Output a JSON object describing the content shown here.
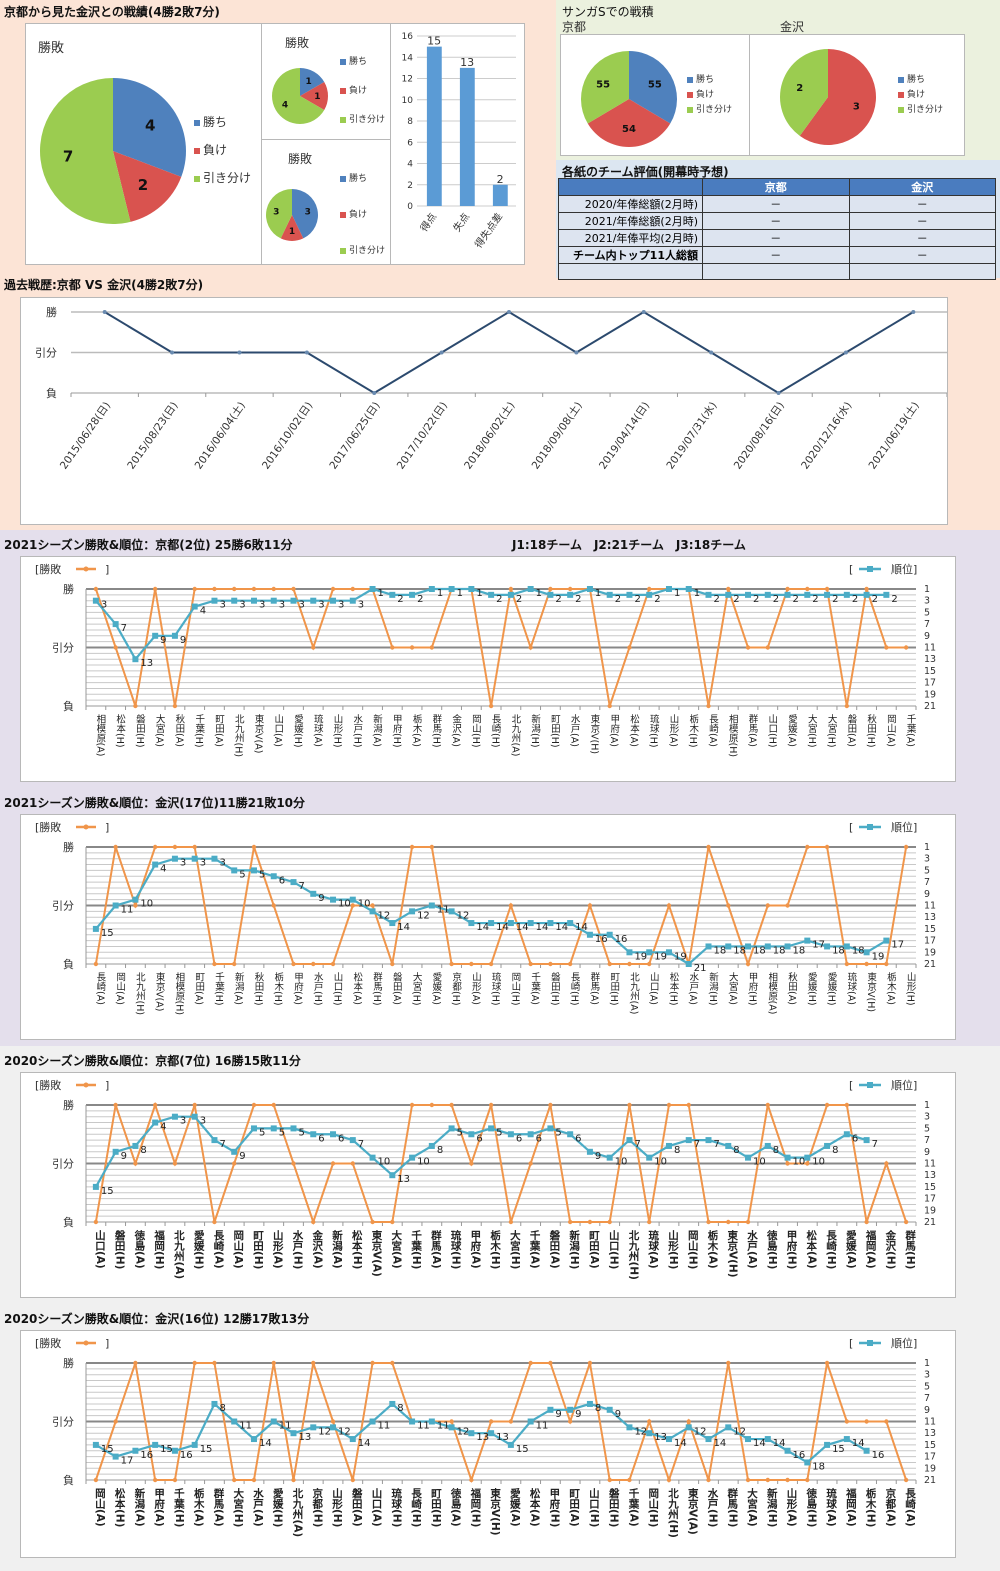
{
  "colors": {
    "win": "#4f81bd",
    "loss": "#d9534f",
    "draw": "#9bcc50",
    "line_result": "#f0954a",
    "line_rank": "#4bacc6",
    "h2h_line": "#2c4a6e",
    "bar": "#5b9bd5"
  },
  "h2h": {
    "title": "京都から見た金沢との戦績(4勝2敗7分)",
    "pie_title": "勝敗",
    "legend": [
      "勝ち",
      "負け",
      "引き分け"
    ],
    "small_pie_title_1": "勝敗",
    "small_pie_title_2": "勝敗",
    "bar_categories": [
      "得点",
      "失点",
      "得失点差"
    ]
  },
  "sanga": {
    "title": "サンガSでの戦積",
    "kyoto_label": "京都",
    "kanazawa_label": "金沢",
    "legend": [
      "勝ち",
      "負け",
      "引き分け"
    ]
  },
  "eval": {
    "title": "各紙のチーム評価(開幕時予想)",
    "headers": [
      "",
      "京都",
      "金沢"
    ],
    "rows": [
      [
        "2020/年俸総額(2月時)",
        "－",
        "－"
      ],
      [
        "2021/年俸総額(2月時)",
        "－",
        "－"
      ],
      [
        "2021/年俸平均(2月時)",
        "－",
        "－"
      ],
      [
        "チーム内トップ11人総額",
        "－",
        "－"
      ],
      [
        "",
        "",
        ""
      ]
    ]
  },
  "history": {
    "title": "過去戦歴:京都 VS 金沢(4勝2敗7分)"
  },
  "season_titles": {
    "k2021": "2021シーズン勝敗&順位：京都(2位) 25勝6敗11分",
    "league_info": "J1:18チーム　J2:21チーム　J3:18チーム",
    "z2021": "2021シーズン勝敗&順位：金沢(17位)11勝21敗10分",
    "k2020": "2020シーズン勝敗&順位：京都(7位) 16勝15敗11分",
    "z2020": "2020シーズン勝敗&順位：金沢(16位) 12勝17敗13分"
  },
  "legend_labels": {
    "result": "[勝敗",
    "result_close": "]",
    "rank_open": "[",
    "rank": "順位]"
  },
  "chart_data": [
    {
      "id": "h2h_pie",
      "type": "pie",
      "title": "勝敗",
      "labels": [
        "勝ち",
        "負け",
        "引き分け"
      ],
      "values": [
        4,
        2,
        7
      ]
    },
    {
      "id": "h2h_pie_small1",
      "type": "pie",
      "title": "勝敗",
      "labels": [
        "勝ち",
        "負け",
        "引き分け"
      ],
      "values": [
        1,
        1,
        4
      ]
    },
    {
      "id": "h2h_pie_small2",
      "type": "pie",
      "title": "勝敗",
      "labels": [
        "勝ち",
        "負け",
        "引き分け"
      ],
      "values": [
        3,
        1,
        3
      ]
    },
    {
      "id": "h2h_bar",
      "type": "bar",
      "title": "",
      "categories": [
        "得点",
        "失点",
        "得失点差"
      ],
      "values": [
        15,
        13,
        2
      ],
      "ylim": [
        0,
        16
      ],
      "yticks": [
        0,
        2,
        4,
        6,
        8,
        10,
        12,
        14,
        16
      ]
    },
    {
      "id": "sanga_kyoto",
      "type": "pie",
      "title": "京都",
      "labels": [
        "勝ち",
        "負け",
        "引き分け"
      ],
      "values": [
        55,
        54,
        55
      ]
    },
    {
      "id": "sanga_kanazawa",
      "type": "pie",
      "title": "金沢",
      "labels": [
        "勝ち",
        "負け",
        "引き分け"
      ],
      "values": [
        0,
        3,
        2
      ]
    },
    {
      "id": "history",
      "type": "line",
      "title": "過去戦歴:京都 VS 金沢(4勝2敗7分)",
      "yticks": [
        "負",
        "引分",
        "勝"
      ],
      "x": [
        "2015/06/28(日)",
        "2015/08/23(日)",
        "2016/06/04(土)",
        "2016/10/02(日)",
        "2017/06/25(日)",
        "2017/10/22(日)",
        "2018/06/02(土)",
        "2018/09/08(土)",
        "2019/04/14(日)",
        "2019/07/31(水)",
        "2020/08/16(日)",
        "2020/12/16(水)",
        "2021/06/19(土)"
      ],
      "values": [
        2,
        1,
        1,
        1,
        0,
        1,
        2,
        1,
        2,
        1,
        0,
        1,
        2
      ]
    },
    {
      "id": "k2021",
      "type": "line",
      "title": "2021シーズン勝敗&順位：京都(2位) 25勝6敗11分",
      "left_yticks": [
        "負",
        "引分",
        "勝"
      ],
      "right_yticks": [
        1,
        3,
        5,
        7,
        9,
        11,
        13,
        15,
        17,
        19,
        21
      ],
      "x": [
        "相模原(A)",
        "松本(H)",
        "磐田(H)",
        "大宮(A)",
        "秋田(A)",
        "千葉(H)",
        "町田(A)",
        "北九州(H)",
        "東京V(A)",
        "山口(A)",
        "愛媛(H)",
        "琉球(A)",
        "山形(H)",
        "水戸(H)",
        "新潟(A)",
        "甲府(H)",
        "栃木(A)",
        "群馬(H)",
        "金沢(A)",
        "岡山(H)",
        "長崎(H)",
        "北九州(A)",
        "新潟(H)",
        "町田(H)",
        "水戸(A)",
        "東京V(H)",
        "甲府(A)",
        "松本(A)",
        "琉球(H)",
        "山形(A)",
        "栃木(H)",
        "長崎(A)",
        "相模原(H)",
        "群馬(A)",
        "山口(H)",
        "愛媛(A)",
        "大宮(H)",
        "大宮(H)",
        "磐田(A)",
        "秋田(H)",
        "岡山(A)",
        "千葉(A)"
      ],
      "series": [
        {
          "name": "勝敗",
          "values": [
            2,
            1,
            0,
            2,
            0,
            2,
            2,
            2,
            2,
            2,
            2,
            1,
            2,
            2,
            2,
            1,
            1,
            1,
            2,
            2,
            0,
            2,
            1,
            2,
            2,
            2,
            0,
            1,
            2,
            2,
            2,
            0,
            2,
            1,
            1,
            2,
            2,
            2,
            0,
            2,
            1,
            1
          ]
        },
        {
          "name": "順位",
          "values": [
            3,
            7,
            13,
            9,
            9,
            4,
            3,
            3,
            3,
            3,
            3,
            3,
            3,
            3,
            1,
            2,
            2,
            1,
            1,
            1,
            2,
            2,
            1,
            2,
            2,
            1,
            2,
            2,
            2,
            1,
            1,
            2,
            2,
            2,
            2,
            2,
            2,
            2,
            2,
            2,
            2,
            null
          ]
        }
      ]
    },
    {
      "id": "z2021",
      "type": "line",
      "title": "2021シーズン勝敗&順位：金沢(17位)11勝21敗10分",
      "left_yticks": [
        "負",
        "引分",
        "勝"
      ],
      "right_yticks": [
        1,
        3,
        5,
        7,
        9,
        11,
        13,
        15,
        17,
        19,
        21
      ],
      "x": [
        "長崎(A)",
        "岡山(A)",
        "北九州(H)",
        "東京V(A)",
        "相模原(H)",
        "町田(A)",
        "千葉(H)",
        "新潟(A)",
        "秋田(H)",
        "栃木(H)",
        "甲府(A)",
        "水戸(H)",
        "山口(H)",
        "松本(A)",
        "群馬(H)",
        "磐田(A)",
        "大宮(H)",
        "愛媛(A)",
        "京都(H)",
        "山形(A)",
        "琉球(H)",
        "岡山(H)",
        "千葉(A)",
        "磐田(H)",
        "長崎(H)",
        "群馬(A)",
        "町田(H)",
        "北九州(A)",
        "山口(A)",
        "松本(H)",
        "水戸(A)",
        "新潟(H)",
        "大宮(A)",
        "甲府(H)",
        "相模原(A)",
        "秋田(A)",
        "愛媛(H)",
        "愛媛(H)",
        "琉球(A)",
        "東京V(H)",
        "栃木(A)",
        "山形(H)"
      ],
      "series": [
        {
          "name": "勝敗",
          "values": [
            0,
            2,
            1,
            2,
            2,
            2,
            0,
            0,
            2,
            1,
            0,
            0,
            0,
            1,
            1,
            0,
            2,
            2,
            0,
            0,
            0,
            1,
            0,
            0,
            0,
            1,
            0,
            0,
            0,
            1,
            0,
            2,
            1,
            0,
            1,
            1,
            2,
            2,
            0,
            0,
            0,
            2
          ]
        },
        {
          "name": "順位",
          "values": [
            15,
            11,
            10,
            4,
            3,
            3,
            3,
            5,
            5,
            6,
            7,
            9,
            10,
            10,
            12,
            14,
            12,
            11,
            12,
            14,
            14,
            14,
            14,
            14,
            14,
            16,
            16,
            19,
            19,
            19,
            21,
            18,
            18,
            18,
            18,
            18,
            17,
            18,
            18,
            19,
            17,
            null
          ]
        }
      ]
    },
    {
      "id": "k2020",
      "type": "line",
      "title": "2020シーズン勝敗&順位：京都(7位) 16勝15敗11分",
      "left_yticks": [
        "負",
        "引分",
        "勝"
      ],
      "right_yticks": [
        1,
        3,
        5,
        7,
        9,
        11,
        13,
        15,
        17,
        19,
        21
      ],
      "x": [
        "山口(A)",
        "磐田(H)",
        "徳島(A)",
        "福岡(H)",
        "北九州(A)",
        "愛媛(H)",
        "長崎(A)",
        "岡山(A)",
        "町田(H)",
        "山形(A)",
        "水戸(H)",
        "金沢(A)",
        "新潟(A)",
        "松本(H)",
        "東京V(A)",
        "大宮(A)",
        "千葉(H)",
        "群馬(A)",
        "琉球(H)",
        "甲府(A)",
        "栃木(H)",
        "大宮(H)",
        "千葉(A)",
        "磐田(A)",
        "新潟(H)",
        "町田(A)",
        "山口(H)",
        "北九州(H)",
        "琉球(A)",
        "山形(H)",
        "岡山(H)",
        "栃木(A)",
        "東京V(H)",
        "水戸(A)",
        "徳島(H)",
        "甲府(H)",
        "松本(A)",
        "長崎(H)",
        "愛媛(A)",
        "福岡(A)",
        "金沢(H)",
        "群馬(H)"
      ],
      "series": [
        {
          "name": "勝敗",
          "values": [
            0,
            2,
            1,
            2,
            1,
            2,
            0,
            1,
            2,
            2,
            1,
            0,
            1,
            1,
            0,
            0,
            2,
            2,
            2,
            1,
            2,
            0,
            1,
            2,
            0,
            0,
            0,
            2,
            0,
            2,
            2,
            0,
            0,
            0,
            2,
            1,
            1,
            2,
            2,
            0,
            1,
            0
          ]
        },
        {
          "name": "順位",
          "values": [
            15,
            9,
            8,
            4,
            3,
            3,
            7,
            9,
            5,
            5,
            5,
            6,
            6,
            7,
            10,
            13,
            10,
            8,
            5,
            6,
            5,
            6,
            6,
            5,
            6,
            9,
            10,
            7,
            10,
            8,
            7,
            7,
            8,
            10,
            8,
            10,
            10,
            8,
            6,
            7,
            null,
            null
          ]
        }
      ]
    },
    {
      "id": "z2020",
      "type": "line",
      "title": "2020シーズン勝敗&順位：金沢(16位) 12勝17敗13分",
      "left_yticks": [
        "負",
        "引分",
        "勝"
      ],
      "right_yticks": [
        1,
        3,
        5,
        7,
        9,
        11,
        13,
        15,
        17,
        19,
        21
      ],
      "x": [
        "岡山(A)",
        "松本(H)",
        "新潟(A)",
        "甲府(A)",
        "千葉(H)",
        "栃木(A)",
        "群馬(A)",
        "大宮(H)",
        "水戸(A)",
        "愛媛(H)",
        "北九州(A)",
        "京都(H)",
        "山形(H)",
        "磐田(A)",
        "山口(A)",
        "琉球(H)",
        "長崎(H)",
        "町田(H)",
        "徳島(A)",
        "福岡(H)",
        "東京V(H)",
        "愛媛(A)",
        "松本(A)",
        "甲府(H)",
        "町田(A)",
        "山口(H)",
        "磐田(H)",
        "千葉(A)",
        "岡山(H)",
        "北九州(H)",
        "東京V(A)",
        "水戸(H)",
        "群馬(H)",
        "大宮(A)",
        "新潟(H)",
        "山形(A)",
        "徳島(H)",
        "琉球(A)",
        "福岡(A)",
        "栃木(H)",
        "京都(A)",
        "長崎(A)"
      ],
      "series": [
        {
          "name": "勝敗",
          "values": [
            0,
            1,
            2,
            0,
            0,
            2,
            2,
            0,
            0,
            2,
            0,
            2,
            1,
            0,
            2,
            2,
            1,
            1,
            1,
            0,
            1,
            1,
            2,
            2,
            1,
            2,
            0,
            0,
            1,
            0,
            1,
            0,
            2,
            0,
            0,
            0,
            0,
            2,
            1,
            1,
            1,
            0
          ]
        },
        {
          "name": "順位",
          "values": [
            15,
            17,
            16,
            15,
            16,
            15,
            8,
            11,
            14,
            11,
            13,
            12,
            12,
            14,
            11,
            8,
            11,
            11,
            12,
            13,
            13,
            15,
            11,
            9,
            9,
            8,
            9,
            12,
            13,
            14,
            12,
            14,
            12,
            14,
            14,
            16,
            18,
            15,
            14,
            16,
            null,
            null
          ]
        }
      ]
    }
  ]
}
